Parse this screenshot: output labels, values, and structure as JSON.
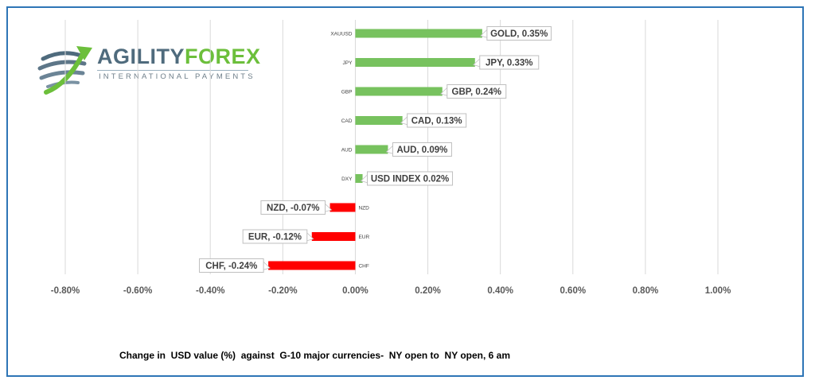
{
  "logo": {
    "agility": "AGILITY",
    "forex": "FOREX",
    "subtitle": "INTERNATIONAL PAYMENTS",
    "icon": "swirl-globe-arrow-icon"
  },
  "caption": "Change in  USD value (%)  against  G-10 major currencies-  NY open to  NY open, 6 am",
  "colors": {
    "positive": "#77c25e",
    "negative": "#ff0000",
    "frame": "#2e75b6",
    "grid": "#d9d9d9",
    "axis_text": "#595959"
  },
  "chart_data": {
    "type": "bar",
    "orientation": "horizontal",
    "categories": [
      "XAUUSD",
      "JPY",
      "GBP",
      "CAD",
      "AUD",
      "DXY",
      "NZD",
      "EUR",
      "CHF"
    ],
    "values": [
      0.35,
      0.33,
      0.24,
      0.13,
      0.09,
      0.02,
      -0.07,
      -0.12,
      -0.24
    ],
    "data_labels": [
      "GOLD, 0.35%",
      "JPY, 0.33%",
      "GBP, 0.24%",
      "CAD, 0.13%",
      "AUD, 0.09%",
      "USD INDEX 0.02%",
      "NZD, -0.07%",
      "EUR, -0.12%",
      "CHF, -0.24%"
    ],
    "xlim": [
      -0.8,
      1.0
    ],
    "xticks": [
      -0.8,
      -0.6,
      -0.4,
      -0.2,
      0.0,
      0.2,
      0.4,
      0.6,
      0.8,
      1.0
    ],
    "xtick_labels": [
      "-0.80%",
      "-0.60%",
      "-0.40%",
      "-0.20%",
      "0.00%",
      "0.20%",
      "0.40%",
      "0.60%",
      "0.80%",
      "1.00%"
    ],
    "grid": true,
    "legend": "none"
  }
}
